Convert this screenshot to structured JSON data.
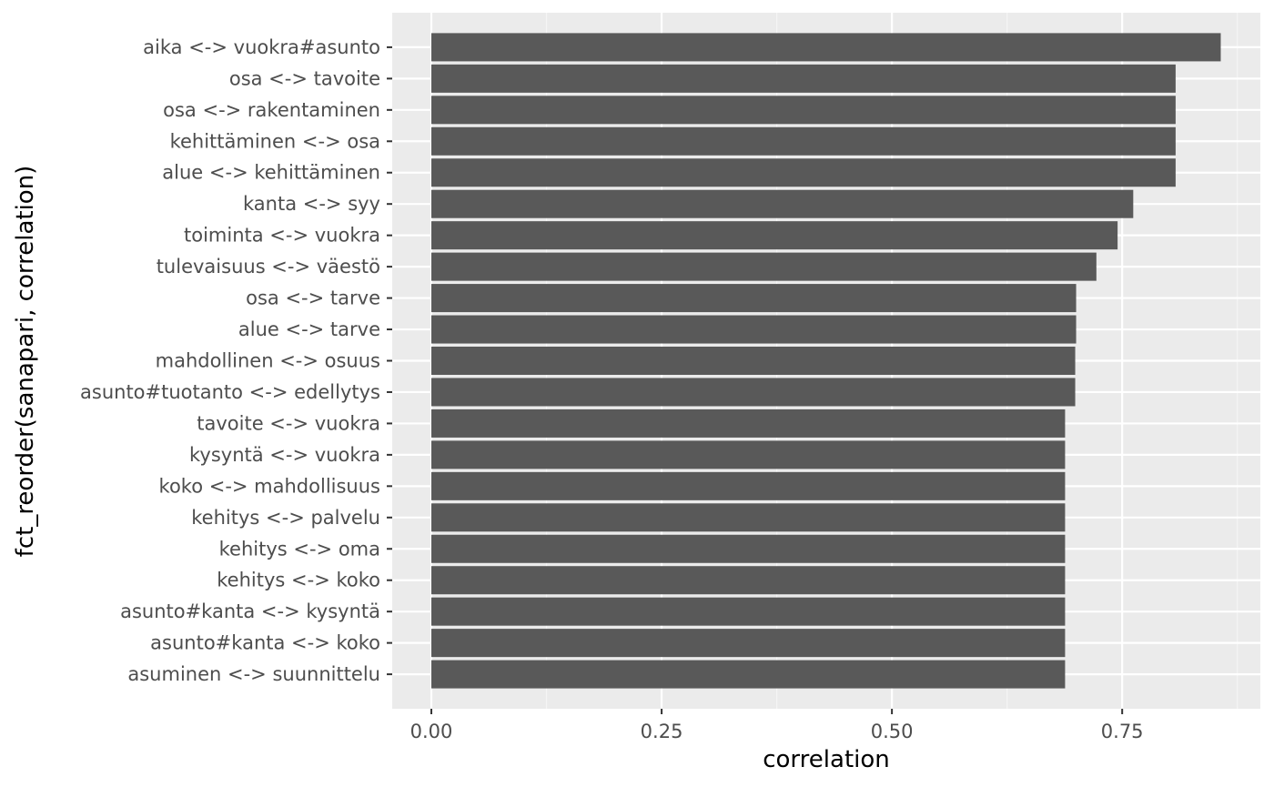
{
  "chart_data": {
    "type": "bar",
    "orientation": "horizontal",
    "title": "",
    "xlabel": "correlation",
    "ylabel": "fct_reorder(sanapari, correlation)",
    "xlim": [
      -0.0425,
      0.9
    ],
    "x_ticks": [
      "0.00",
      "0.25",
      "0.50",
      "0.75"
    ],
    "x_tick_values": [
      0,
      0.25,
      0.5,
      0.75
    ],
    "grid": true,
    "legend": "none",
    "colors": {
      "bar": "#595959",
      "panel": "#ebebeb",
      "grid_major": "#ffffff",
      "grid_minor": "#f5f5f5"
    },
    "categories": [
      "aika <-> vuokra#asunto",
      "osa <-> tavoite",
      "osa <-> rakentaminen",
      "kehittäminen <-> osa",
      "alue <-> kehittäminen",
      "kanta <-> syy",
      "toiminta <-> vuokra",
      "tulevaisuus <-> väestö",
      "osa <-> tarve",
      "alue <-> tarve",
      "mahdollinen <-> osuus",
      "asunto#tuotanto <-> edellytys",
      "tavoite <-> vuokra",
      "kysyntä <-> vuokra",
      "koko <-> mahdollisuus",
      "kehitys <-> palvelu",
      "kehitys <-> oma",
      "kehitys <-> koko",
      "asunto#kanta <-> kysyntä",
      "asunto#kanta <-> koko",
      "asuminen <-> suunnittelu"
    ],
    "values": [
      0.857,
      0.808,
      0.808,
      0.808,
      0.808,
      0.762,
      0.745,
      0.722,
      0.7,
      0.7,
      0.699,
      0.699,
      0.688,
      0.688,
      0.688,
      0.688,
      0.688,
      0.688,
      0.688,
      0.688,
      0.688
    ]
  }
}
